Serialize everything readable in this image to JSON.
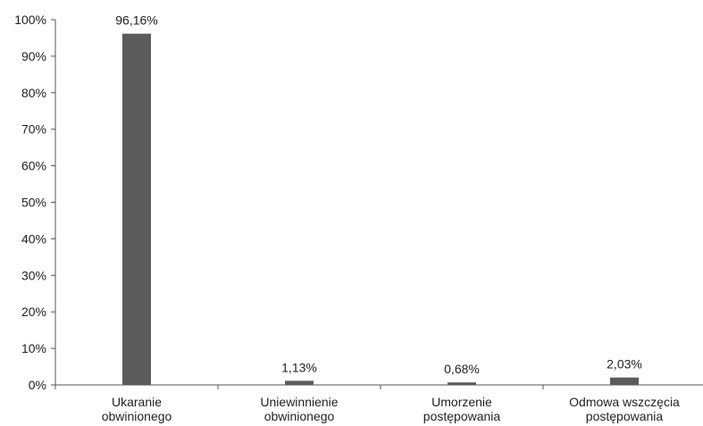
{
  "chart_data": {
    "type": "bar",
    "categories": [
      [
        "Ukaranie",
        "obwinionego"
      ],
      [
        "Uniewinnienie",
        "obwinionego"
      ],
      [
        "Umorzenie",
        "postępowania"
      ],
      [
        "Odmowa wszczęcia",
        "postępowania"
      ]
    ],
    "values": [
      96.16,
      1.13,
      0.68,
      2.03
    ],
    "data_labels": [
      "96,16%",
      "1,13%",
      "0,68%",
      "2,03%"
    ],
    "y_ticks": [
      "0%",
      "10%",
      "20%",
      "30%",
      "40%",
      "50%",
      "60%",
      "70%",
      "80%",
      "90%",
      "100%"
    ],
    "ylim": [
      0,
      100
    ],
    "bar_color": "#5b5b5b",
    "grid": false,
    "legend": false
  }
}
